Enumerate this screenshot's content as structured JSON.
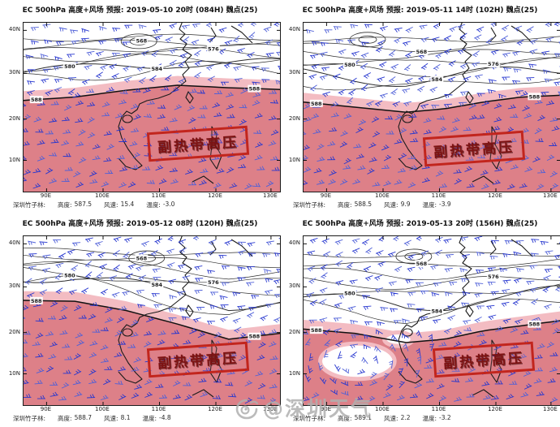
{
  "watermark": {
    "handle": "@深圳天气",
    "icon": "weibo-icon"
  },
  "axes": {
    "lat_ticks": [
      "40N",
      "30N",
      "20N",
      "10N"
    ],
    "lon_ticks": [
      "90E",
      "100E",
      "110E",
      "120E",
      "130E"
    ]
  },
  "colors": {
    "high_dark": "#dd8088",
    "high_light": "#f3bcc2",
    "stamp_red": "#c2251d",
    "barb_blue": "#2636cf",
    "barb_blue2": "#4e5fd8",
    "contour": "#2e2e2e",
    "coast": "#1a1a1a"
  },
  "panels": [
    {
      "title": "EC 500hPa 高度+风场  预报: 2019-05-10 20时 (084H) 魏点(25)",
      "region_label": "副热带高压",
      "contour_labels": [
        "568",
        "576",
        "580",
        "584",
        "588"
      ],
      "status": {
        "station": "深圳竹子林:",
        "height_label": "高度:",
        "height": "587.5",
        "wind_label": "风速:",
        "wind": "15.4",
        "temp_label": "温度:",
        "temp": "-3.0"
      }
    },
    {
      "title": "EC 500hPa 高度+风场  预报: 2019-05-11 14时 (102H) 魏点(25)",
      "region_label": "副热带高压",
      "contour_labels": [
        "568",
        "576",
        "580",
        "584",
        "588"
      ],
      "status": {
        "station": "深圳竹子林:",
        "height_label": "高度:",
        "height": "588.5",
        "wind_label": "风速:",
        "wind": "9.9",
        "temp_label": "温度:",
        "temp": "-3.9"
      }
    },
    {
      "title": "EC 500hPa 高度+风场  预报: 2019-05-12 08时 (120H) 魏点(25)",
      "region_label": "副热带高压",
      "contour_labels": [
        "568",
        "576",
        "580",
        "584",
        "588"
      ],
      "status": {
        "station": "深圳竹子林:",
        "height_label": "高度:",
        "height": "588.7",
        "wind_label": "风速:",
        "wind": "8.1",
        "temp_label": "温度:",
        "temp": "-4.8"
      }
    },
    {
      "title": "EC 500hPa 高度+风场  预报: 2019-05-13 20时 (156H) 魏点(25)",
      "region_label": "副热带高压",
      "contour_labels": [
        "568",
        "576",
        "580",
        "584",
        "588"
      ],
      "status": {
        "station": "深圳竹子林:",
        "height_label": "高度:",
        "height": "589.1",
        "wind_label": "风速:",
        "wind": "2.2",
        "temp_label": "温度:",
        "temp": "-3.2"
      }
    }
  ]
}
